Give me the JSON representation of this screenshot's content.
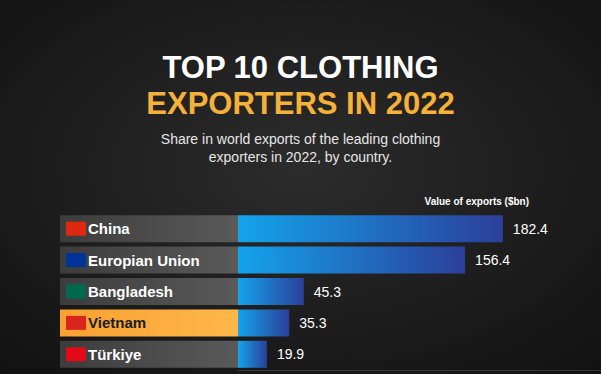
{
  "chart_data": {
    "type": "bar",
    "orientation": "horizontal",
    "title": "TOP 10 CLOTHING\nEXPORTERS IN 2022",
    "subtitle": "Share in world exports of the leading clothing\nexporters in 2022, by country.",
    "xlabel": "Value of exports ($bn)",
    "categories": [
      "China",
      "Europian Union",
      "Bangladesh",
      "Vietnam",
      "Türkiye"
    ],
    "values": [
      182.4,
      156.4,
      45.3,
      35.3,
      19.9
    ],
    "color": "#1f8fe0",
    "xlim": [
      0,
      250
    ],
    "grid": false,
    "data_labels": true,
    "tick_labels": "y"
  }
}
